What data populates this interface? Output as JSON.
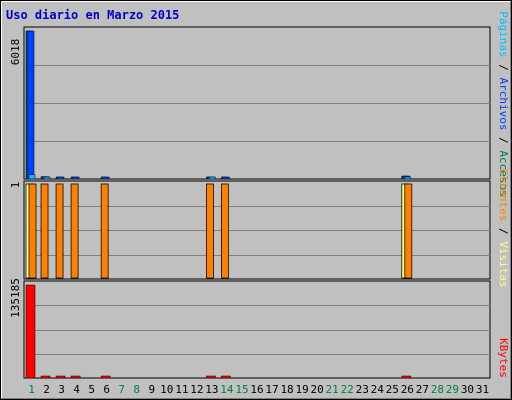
{
  "title": "Uso diario en Marzo 2015",
  "colors": {
    "title": "#0000cc",
    "accesos": "#008040",
    "archivos": "#0040ff",
    "paginas": "#00c0ff",
    "visitas": "#ffff80",
    "clientes": "#ff8000",
    "kbytes": "#ff0000",
    "weekday": "#000000",
    "weekend": "#008040",
    "grid": "#808080",
    "plot_bg": "#c0c0c0",
    "frame_bg": "#c0c0c0"
  },
  "chart_data": [
    {
      "type": "bar",
      "title": "Uso diario en Marzo 2015",
      "ylabel_max": "6018",
      "ylim": [
        0,
        6018
      ],
      "grid": true,
      "categories": [
        "1",
        "2",
        "3",
        "4",
        "5",
        "6",
        "7",
        "8",
        "9",
        "10",
        "11",
        "12",
        "13",
        "14",
        "15",
        "16",
        "17",
        "18",
        "19",
        "20",
        "21",
        "22",
        "23",
        "24",
        "25",
        "26",
        "27",
        "28",
        "29",
        "30",
        "31"
      ],
      "weekend": [
        1,
        7,
        8,
        14,
        15,
        21,
        22,
        28,
        29
      ],
      "legend": [
        "Accesos",
        "Archivos",
        "Páginas"
      ],
      "series": [
        {
          "name": "Accesos",
          "values": [
            6018,
            95,
            30,
            30,
            0,
            30,
            0,
            0,
            0,
            0,
            0,
            0,
            80,
            30,
            0,
            0,
            0,
            0,
            0,
            0,
            0,
            0,
            0,
            0,
            0,
            120,
            0,
            0,
            0,
            0,
            0
          ]
        },
        {
          "name": "Archivos",
          "values": [
            6018,
            95,
            30,
            30,
            0,
            30,
            0,
            0,
            0,
            0,
            0,
            0,
            80,
            30,
            0,
            0,
            0,
            0,
            0,
            0,
            0,
            0,
            0,
            0,
            0,
            120,
            0,
            0,
            0,
            0,
            0
          ]
        },
        {
          "name": "Páginas",
          "values": [
            180,
            40,
            0,
            0,
            0,
            0,
            0,
            0,
            0,
            0,
            0,
            0,
            25,
            0,
            0,
            0,
            0,
            0,
            0,
            0,
            0,
            0,
            0,
            0,
            0,
            40,
            0,
            0,
            0,
            0,
            0
          ]
        }
      ]
    },
    {
      "type": "bar",
      "ylabel_max": "1",
      "ylim": [
        0,
        1
      ],
      "grid": true,
      "legend": [
        "Clientes",
        "Visitas"
      ],
      "series": [
        {
          "name": "Visitas",
          "values": [
            1,
            0,
            0,
            0,
            0,
            0,
            0,
            0,
            0,
            0,
            0,
            0,
            0,
            0,
            0,
            0,
            0,
            0,
            0,
            0,
            0,
            0,
            0,
            0,
            0,
            1,
            0,
            0,
            0,
            0,
            0
          ]
        },
        {
          "name": "Clientes",
          "values": [
            1,
            1,
            1,
            1,
            0,
            1,
            0,
            0,
            0,
            0,
            0,
            0,
            1,
            1,
            0,
            0,
            0,
            0,
            0,
            0,
            0,
            0,
            0,
            0,
            0,
            1,
            0,
            0,
            0,
            0,
            0
          ]
        }
      ]
    },
    {
      "type": "bar",
      "ylabel_max": "135185",
      "ylim": [
        0,
        135185
      ],
      "grid": true,
      "legend": [
        "KBytes"
      ],
      "series": [
        {
          "name": "KBytes",
          "values": [
            135185,
            1200,
            1200,
            1200,
            0,
            1200,
            0,
            0,
            0,
            0,
            0,
            0,
            1200,
            1200,
            0,
            0,
            0,
            0,
            0,
            0,
            0,
            0,
            0,
            0,
            0,
            1200,
            0,
            0,
            0,
            0,
            0
          ]
        }
      ]
    }
  ]
}
